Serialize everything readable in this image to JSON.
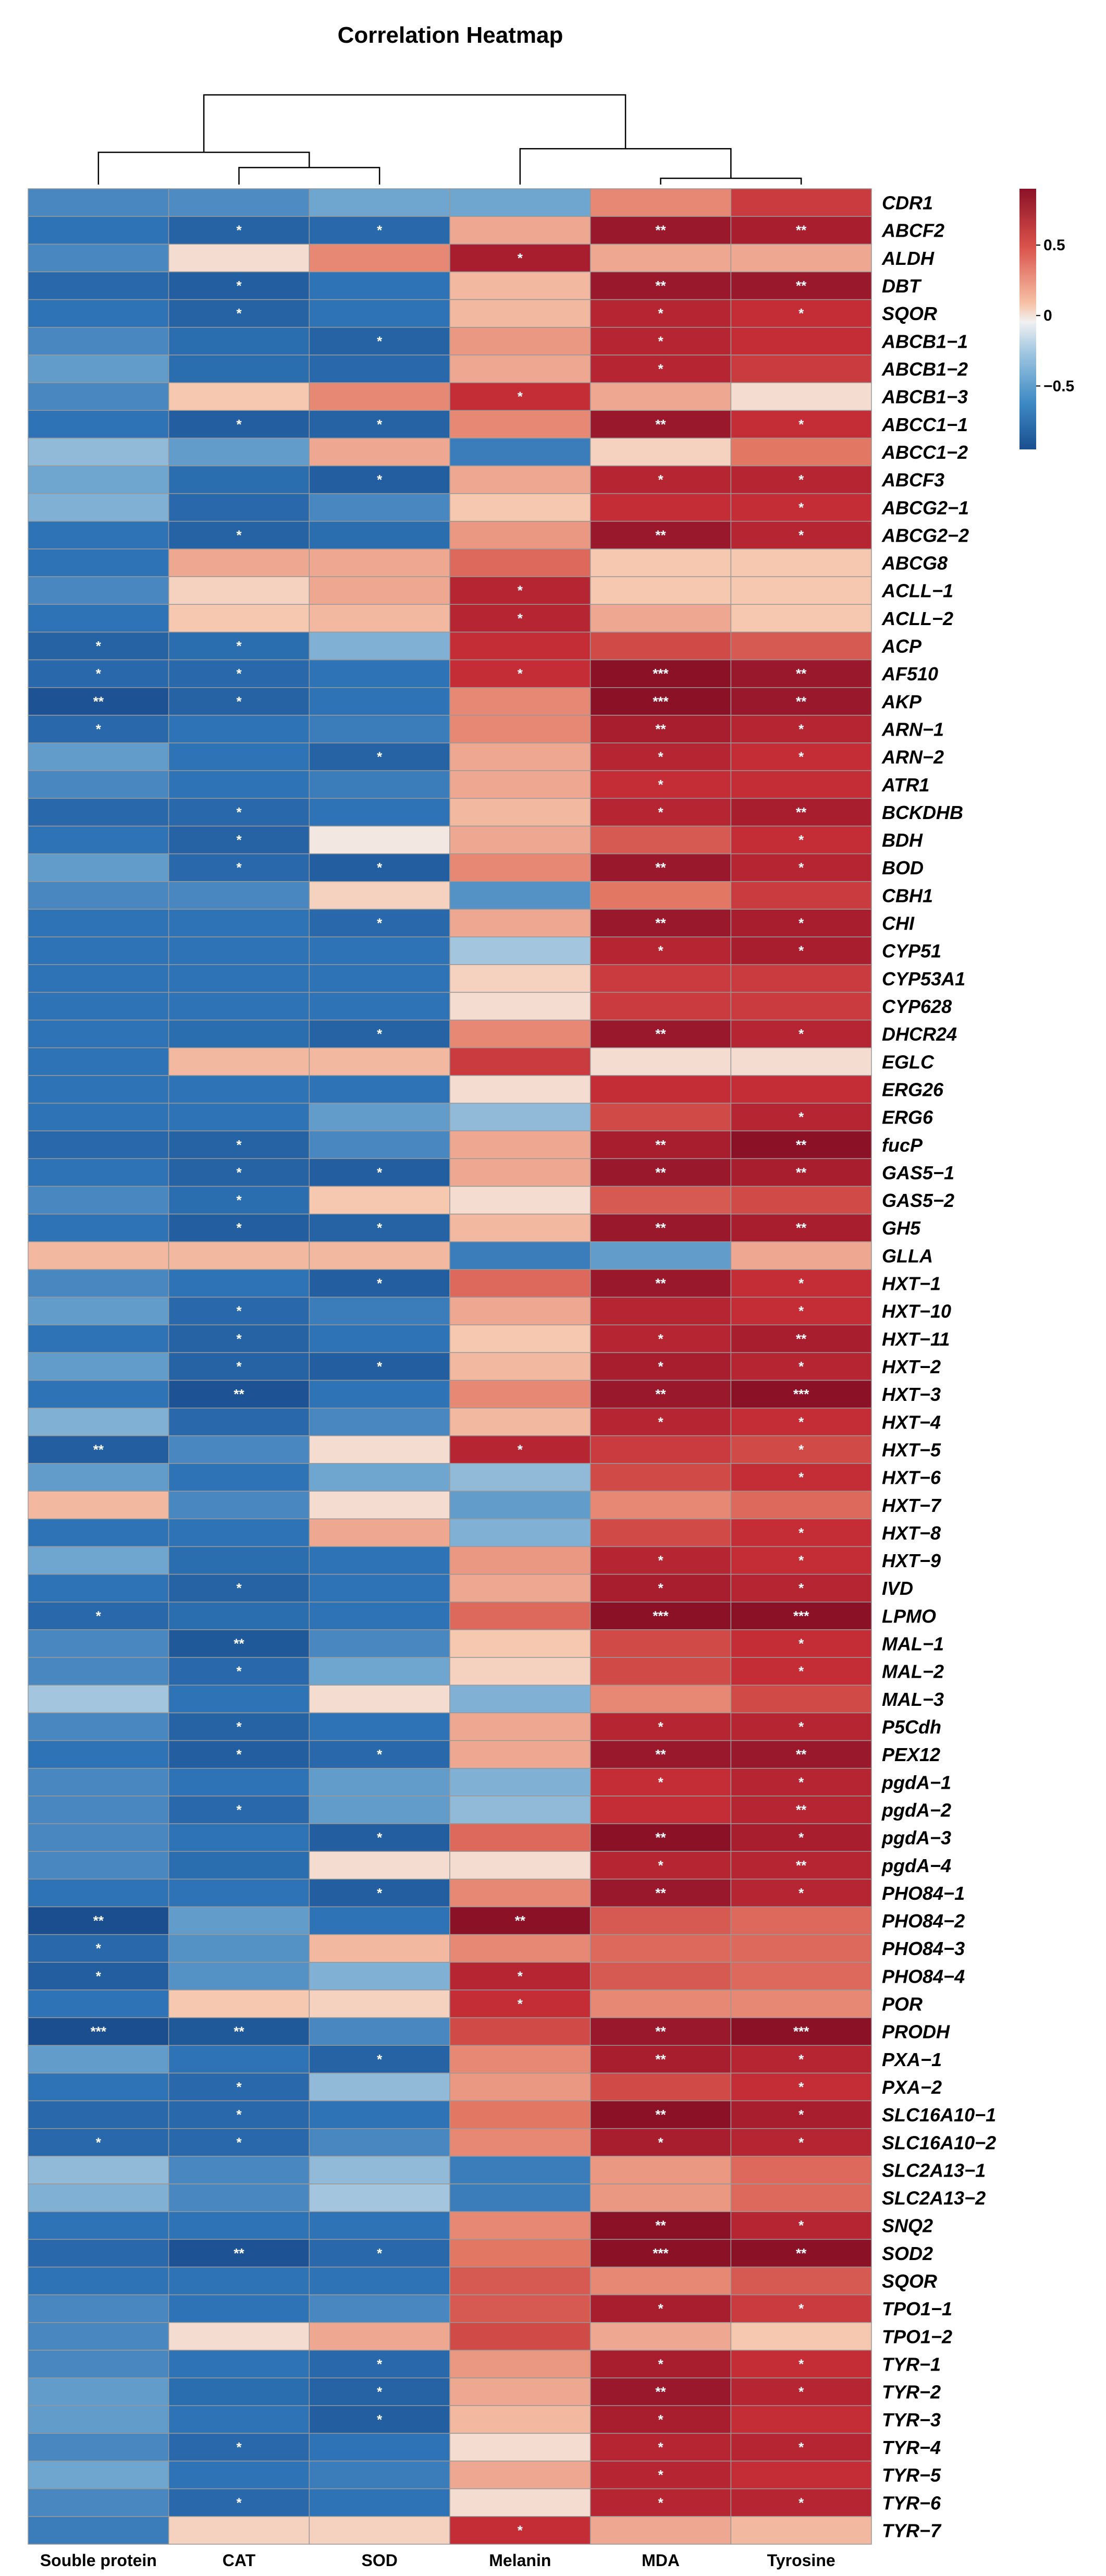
{
  "chart_data": {
    "type": "heatmap",
    "title": "Correlation Heatmap",
    "columns": [
      "Souble protein",
      "CAT",
      "SOD",
      "Melanin",
      "MDA",
      "Tyrosine"
    ],
    "rows": [
      "CDR1",
      "ABCF2",
      "ALDH",
      "DBT",
      "SQOR",
      "ABCB1−1",
      "ABCB1−2",
      "ABCB1−3",
      "ABCC1−1",
      "ABCC1−2",
      "ABCF3",
      "ABCG2−1",
      "ABCG2−2",
      "ABCG8",
      "ACLL−1",
      "ACLL−2",
      "ACP",
      "AF510",
      "AKP",
      "ARN−1",
      "ARN−2",
      "ATR1",
      "BCKDHB",
      "BDH",
      "BOD",
      "CBH1",
      "CHI",
      "CYP51",
      "CYP53A1",
      "CYP628",
      "DHCR24",
      "EGLC",
      "ERG26",
      "ERG6",
      "fucP",
      "GAS5−1",
      "GAS5−2",
      "GH5",
      "GLLA",
      "HXT−1",
      "HXT−10",
      "HXT−11",
      "HXT−2",
      "HXT−3",
      "HXT−4",
      "HXT−5",
      "HXT−6",
      "HXT−7",
      "HXT−8",
      "HXT−9",
      "IVD",
      "LPMO",
      "MAL−1",
      "MAL−2",
      "MAL−3",
      "P5Cdh",
      "PEX12",
      "pgdA−1",
      "pgdA−2",
      "pgdA−3",
      "pgdA−4",
      "PHO84−1",
      "PHO84−2",
      "PHO84−3",
      "PHO84−4",
      "POR",
      "PRODH",
      "PXA−1",
      "PXA−2",
      "SLC16A10−1",
      "SLC16A10−2",
      "SLC2A13−1",
      "SLC2A13−2",
      "SNQ2",
      "SOD2",
      "SQOR",
      "TPO1−1",
      "TPO1−2",
      "TYR−1",
      "TYR−2",
      "TYR−3",
      "TYR−4",
      "TYR−5",
      "TYR−6",
      "TYR−7"
    ],
    "values": [
      [
        -0.5,
        -0.48,
        -0.35,
        -0.35,
        0.4,
        0.65
      ],
      [
        -0.6,
        -0.75,
        -0.7,
        0.3,
        0.85,
        0.8
      ],
      [
        -0.5,
        0.1,
        0.4,
        0.8,
        0.3,
        0.3
      ],
      [
        -0.7,
        -0.8,
        -0.6,
        0.25,
        0.85,
        0.85
      ],
      [
        -0.6,
        -0.75,
        -0.6,
        0.25,
        0.75,
        0.7
      ],
      [
        -0.5,
        -0.65,
        -0.75,
        0.35,
        0.75,
        0.7
      ],
      [
        -0.4,
        -0.65,
        -0.7,
        0.3,
        0.75,
        0.65
      ],
      [
        -0.5,
        0.2,
        0.4,
        0.7,
        0.3,
        0.1
      ],
      [
        -0.6,
        -0.8,
        -0.75,
        0.4,
        0.85,
        0.7
      ],
      [
        -0.25,
        -0.4,
        0.3,
        -0.55,
        0.15,
        0.45
      ],
      [
        -0.35,
        -0.65,
        -0.8,
        0.3,
        0.75,
        0.75
      ],
      [
        -0.3,
        -0.7,
        -0.5,
        0.2,
        0.7,
        0.7
      ],
      [
        -0.6,
        -0.75,
        -0.65,
        0.35,
        0.85,
        0.75
      ],
      [
        -0.6,
        0.3,
        0.3,
        0.5,
        0.2,
        0.2
      ],
      [
        -0.5,
        0.15,
        0.3,
        0.75,
        0.2,
        0.2
      ],
      [
        -0.6,
        0.2,
        0.25,
        0.75,
        0.3,
        0.2
      ],
      [
        -0.75,
        -0.65,
        -0.3,
        0.7,
        0.6,
        0.55
      ],
      [
        -0.7,
        -0.7,
        -0.6,
        0.7,
        0.95,
        0.85
      ],
      [
        -0.9,
        -0.75,
        -0.6,
        0.4,
        0.95,
        0.85
      ],
      [
        -0.7,
        -0.6,
        -0.55,
        0.4,
        0.8,
        0.75
      ],
      [
        -0.4,
        -0.6,
        -0.75,
        0.3,
        0.75,
        0.7
      ],
      [
        -0.5,
        -0.6,
        -0.55,
        0.3,
        0.7,
        0.7
      ],
      [
        -0.7,
        -0.7,
        -0.6,
        0.25,
        0.75,
        0.8
      ],
      [
        -0.6,
        -0.75,
        0.05,
        0.3,
        0.55,
        0.7
      ],
      [
        -0.4,
        -0.7,
        -0.8,
        0.4,
        0.85,
        0.75
      ],
      [
        -0.5,
        -0.5,
        0.15,
        -0.45,
        0.45,
        0.65
      ],
      [
        -0.6,
        -0.6,
        -0.7,
        0.3,
        0.85,
        0.8
      ],
      [
        -0.6,
        -0.6,
        -0.6,
        -0.2,
        0.75,
        0.8
      ],
      [
        -0.6,
        -0.6,
        -0.6,
        0.15,
        0.65,
        0.65
      ],
      [
        -0.6,
        -0.6,
        -0.6,
        0.1,
        0.65,
        0.65
      ],
      [
        -0.6,
        -0.65,
        -0.75,
        0.4,
        0.85,
        0.75
      ],
      [
        -0.6,
        0.25,
        0.25,
        0.65,
        0.1,
        0.1
      ],
      [
        -0.6,
        -0.6,
        -0.6,
        0.1,
        0.7,
        0.7
      ],
      [
        -0.6,
        -0.6,
        -0.4,
        -0.25,
        0.6,
        0.75
      ],
      [
        -0.7,
        -0.75,
        -0.5,
        0.3,
        0.8,
        0.9
      ],
      [
        -0.6,
        -0.75,
        -0.8,
        0.3,
        0.85,
        0.8
      ],
      [
        -0.5,
        -0.65,
        0.2,
        0.1,
        0.55,
        0.6
      ],
      [
        -0.6,
        -0.8,
        -0.75,
        0.25,
        0.85,
        0.8
      ],
      [
        0.25,
        0.25,
        0.25,
        -0.55,
        -0.4,
        0.3
      ],
      [
        -0.5,
        -0.6,
        -0.8,
        0.5,
        0.85,
        0.7
      ],
      [
        -0.4,
        -0.7,
        -0.55,
        0.3,
        0.75,
        0.7
      ],
      [
        -0.6,
        -0.75,
        -0.6,
        0.2,
        0.75,
        0.8
      ],
      [
        -0.4,
        -0.75,
        -0.8,
        0.25,
        0.8,
        0.75
      ],
      [
        -0.6,
        -0.9,
        -0.6,
        0.4,
        0.85,
        0.9
      ],
      [
        -0.3,
        -0.7,
        -0.5,
        0.25,
        0.75,
        0.7
      ],
      [
        -0.8,
        -0.5,
        0.1,
        0.75,
        0.65,
        0.6
      ],
      [
        -0.4,
        -0.6,
        -0.35,
        -0.25,
        0.6,
        0.7
      ],
      [
        0.25,
        -0.5,
        0.1,
        -0.4,
        0.4,
        0.5
      ],
      [
        -0.6,
        -0.6,
        0.3,
        -0.3,
        0.6,
        0.7
      ],
      [
        -0.35,
        -0.65,
        -0.6,
        0.35,
        0.75,
        0.7
      ],
      [
        -0.6,
        -0.75,
        -0.6,
        0.3,
        0.8,
        0.75
      ],
      [
        -0.7,
        -0.65,
        -0.6,
        0.5,
        0.95,
        0.95
      ],
      [
        -0.5,
        -0.85,
        -0.5,
        0.2,
        0.6,
        0.7
      ],
      [
        -0.5,
        -0.7,
        -0.35,
        0.15,
        0.6,
        0.7
      ],
      [
        -0.2,
        -0.6,
        0.1,
        -0.3,
        0.4,
        0.6
      ],
      [
        -0.5,
        -0.75,
        -0.6,
        0.3,
        0.75,
        0.75
      ],
      [
        -0.6,
        -0.8,
        -0.7,
        0.3,
        0.85,
        0.85
      ],
      [
        -0.5,
        -0.6,
        -0.4,
        -0.3,
        0.7,
        0.75
      ],
      [
        -0.5,
        -0.7,
        -0.4,
        -0.25,
        0.7,
        0.75
      ],
      [
        -0.5,
        -0.6,
        -0.8,
        0.5,
        0.9,
        0.8
      ],
      [
        -0.5,
        -0.65,
        0.1,
        0.1,
        0.75,
        0.75
      ],
      [
        -0.6,
        -0.6,
        -0.8,
        0.4,
        0.85,
        0.75
      ],
      [
        -0.95,
        -0.4,
        -0.6,
        0.9,
        0.55,
        0.5
      ],
      [
        -0.7,
        -0.45,
        0.25,
        0.4,
        0.5,
        0.5
      ],
      [
        -0.8,
        -0.45,
        -0.3,
        0.75,
        0.55,
        0.5
      ],
      [
        -0.6,
        0.2,
        0.15,
        0.7,
        0.4,
        0.4
      ],
      [
        -0.98,
        -0.85,
        -0.5,
        0.6,
        0.85,
        0.95
      ],
      [
        -0.4,
        -0.6,
        -0.75,
        0.4,
        0.8,
        0.75
      ],
      [
        -0.6,
        -0.7,
        -0.25,
        0.35,
        0.6,
        0.7
      ],
      [
        -0.7,
        -0.7,
        -0.6,
        0.45,
        0.9,
        0.8
      ],
      [
        -0.7,
        -0.7,
        -0.5,
        0.4,
        0.8,
        0.75
      ],
      [
        -0.25,
        -0.5,
        -0.25,
        -0.55,
        0.35,
        0.5
      ],
      [
        -0.3,
        -0.5,
        -0.2,
        -0.55,
        0.35,
        0.5
      ],
      [
        -0.6,
        -0.6,
        -0.6,
        0.4,
        0.9,
        0.75
      ],
      [
        -0.7,
        -0.9,
        -0.7,
        0.45,
        0.95,
        0.9
      ],
      [
        -0.6,
        -0.6,
        -0.6,
        0.55,
        0.4,
        0.55
      ],
      [
        -0.5,
        -0.6,
        -0.5,
        0.55,
        0.8,
        0.65
      ],
      [
        -0.5,
        0.1,
        0.3,
        0.6,
        0.3,
        0.2
      ],
      [
        -0.5,
        -0.6,
        -0.7,
        0.35,
        0.8,
        0.7
      ],
      [
        -0.4,
        -0.65,
        -0.75,
        0.3,
        0.85,
        0.75
      ],
      [
        -0.4,
        -0.6,
        -0.8,
        0.25,
        0.8,
        0.7
      ],
      [
        -0.5,
        -0.7,
        -0.6,
        0.1,
        0.75,
        0.75
      ],
      [
        -0.35,
        -0.6,
        -0.55,
        0.3,
        0.75,
        0.7
      ],
      [
        -0.5,
        -0.7,
        -0.6,
        0.1,
        0.75,
        0.75
      ],
      [
        -0.55,
        0.15,
        0.15,
        0.7,
        0.3,
        0.25
      ]
    ],
    "significance": [
      [
        "",
        "",
        "",
        "",
        "",
        ""
      ],
      [
        "",
        "*",
        "*",
        "",
        "**",
        "**"
      ],
      [
        "",
        "",
        "",
        "*",
        "",
        ""
      ],
      [
        "",
        "*",
        "",
        "",
        "**",
        "**"
      ],
      [
        "",
        "*",
        "",
        "",
        "*",
        "*"
      ],
      [
        "",
        "",
        "*",
        "",
        "*",
        ""
      ],
      [
        "",
        "",
        "",
        "",
        "*",
        ""
      ],
      [
        "",
        "",
        "",
        "*",
        "",
        ""
      ],
      [
        "",
        "*",
        "*",
        "",
        "**",
        "*"
      ],
      [
        "",
        "",
        "",
        "",
        "",
        ""
      ],
      [
        "",
        "",
        "*",
        "",
        "*",
        "*"
      ],
      [
        "",
        "",
        "",
        "",
        "",
        "*"
      ],
      [
        "",
        "*",
        "",
        "",
        "**",
        "*"
      ],
      [
        "",
        "",
        "",
        "",
        "",
        ""
      ],
      [
        "",
        "",
        "",
        "*",
        "",
        ""
      ],
      [
        "",
        "",
        "",
        "*",
        "",
        ""
      ],
      [
        "*",
        "*",
        "",
        "",
        "",
        ""
      ],
      [
        "*",
        "*",
        "",
        "*",
        "***",
        "**"
      ],
      [
        "**",
        "*",
        "",
        "",
        "***",
        "**"
      ],
      [
        "*",
        "",
        "",
        "",
        "**",
        "*"
      ],
      [
        "",
        "",
        "*",
        "",
        "*",
        "*"
      ],
      [
        "",
        "",
        "",
        "",
        "*",
        ""
      ],
      [
        "",
        "*",
        "",
        "",
        "*",
        "**"
      ],
      [
        "",
        "*",
        "",
        "",
        "",
        "*"
      ],
      [
        "",
        "*",
        "*",
        "",
        "**",
        "*"
      ],
      [
        "",
        "",
        "",
        "",
        "",
        ""
      ],
      [
        "",
        "",
        "*",
        "",
        "**",
        "*"
      ],
      [
        "",
        "",
        "",
        "",
        "*",
        "*"
      ],
      [
        "",
        "",
        "",
        "",
        "",
        ""
      ],
      [
        "",
        "",
        "",
        "",
        "",
        ""
      ],
      [
        "",
        "",
        "*",
        "",
        "**",
        "*"
      ],
      [
        "",
        "",
        "",
        "",
        "",
        ""
      ],
      [
        "",
        "",
        "",
        "",
        "",
        ""
      ],
      [
        "",
        "",
        "",
        "",
        "",
        "*"
      ],
      [
        "",
        "*",
        "",
        "",
        "**",
        "**"
      ],
      [
        "",
        "*",
        "*",
        "",
        "**",
        "**"
      ],
      [
        "",
        "*",
        "",
        "",
        "",
        ""
      ],
      [
        "",
        "*",
        "*",
        "",
        "**",
        "**"
      ],
      [
        "",
        "",
        "",
        "",
        "",
        ""
      ],
      [
        "",
        "",
        "*",
        "",
        "**",
        "*"
      ],
      [
        "",
        "*",
        "",
        "",
        "",
        "*"
      ],
      [
        "",
        "*",
        "",
        "",
        "*",
        "**"
      ],
      [
        "",
        "*",
        "*",
        "",
        "*",
        "*"
      ],
      [
        "",
        "**",
        "",
        "",
        "**",
        "***"
      ],
      [
        "",
        "",
        "",
        "",
        "*",
        "*"
      ],
      [
        "**",
        "",
        "",
        "*",
        "",
        "*"
      ],
      [
        "",
        "",
        "",
        "",
        "",
        "*"
      ],
      [
        "",
        "",
        "",
        "",
        "",
        ""
      ],
      [
        "",
        "",
        "",
        "",
        "",
        "*"
      ],
      [
        "",
        "",
        "",
        "",
        "*",
        "*"
      ],
      [
        "",
        "*",
        "",
        "",
        "*",
        "*"
      ],
      [
        "*",
        "",
        "",
        "",
        "***",
        "***"
      ],
      [
        "",
        "**",
        "",
        "",
        "",
        "*"
      ],
      [
        "",
        "*",
        "",
        "",
        "",
        "*"
      ],
      [
        "",
        "",
        "",
        "",
        "",
        ""
      ],
      [
        "",
        "*",
        "",
        "",
        "*",
        "*"
      ],
      [
        "",
        "*",
        "*",
        "",
        "**",
        "**"
      ],
      [
        "",
        "",
        "",
        "",
        "*",
        "*"
      ],
      [
        "",
        "*",
        "",
        "",
        "",
        "**"
      ],
      [
        "",
        "",
        "*",
        "",
        "**",
        "*"
      ],
      [
        "",
        "",
        "",
        "",
        "*",
        "**"
      ],
      [
        "",
        "",
        "*",
        "",
        "**",
        "*"
      ],
      [
        "**",
        "",
        "",
        "**",
        "",
        ""
      ],
      [
        "*",
        "",
        "",
        "",
        "",
        ""
      ],
      [
        "*",
        "",
        "",
        "*",
        "",
        ""
      ],
      [
        "",
        "",
        "",
        "*",
        "",
        ""
      ],
      [
        "***",
        "**",
        "",
        "",
        "**",
        "***"
      ],
      [
        "",
        "",
        "*",
        "",
        "**",
        "*"
      ],
      [
        "",
        "*",
        "",
        "",
        "",
        "*"
      ],
      [
        "",
        "*",
        "",
        "",
        "**",
        "*"
      ],
      [
        "*",
        "*",
        "",
        "",
        "*",
        "*"
      ],
      [
        "",
        "",
        "",
        "",
        "",
        ""
      ],
      [
        "",
        "",
        "",
        "",
        "",
        ""
      ],
      [
        "",
        "",
        "",
        "",
        "**",
        "*"
      ],
      [
        "",
        "**",
        "*",
        "",
        "***",
        "**"
      ],
      [
        "",
        "",
        "",
        "",
        "",
        ""
      ],
      [
        "",
        "",
        "",
        "",
        "*",
        "*"
      ],
      [
        "",
        "",
        "",
        "",
        "",
        ""
      ],
      [
        "",
        "",
        "*",
        "",
        "*",
        "*"
      ],
      [
        "",
        "",
        "*",
        "",
        "**",
        "*"
      ],
      [
        "",
        "",
        "*",
        "",
        "*",
        ""
      ],
      [
        "",
        "*",
        "",
        "",
        "*",
        "*"
      ],
      [
        "",
        "",
        "",
        "",
        "*",
        ""
      ],
      [
        "",
        "*",
        "",
        "",
        "*",
        "*"
      ],
      [
        "",
        "",
        "",
        "*",
        "",
        ""
      ]
    ],
    "colorbar": {
      "range": [
        -0.95,
        0.9
      ],
      "ticks": [
        0.5,
        0,
        -0.5
      ],
      "tick_labels": [
        "0.5",
        "0",
        "−0.5"
      ],
      "low_color": "#1a4e8f",
      "mid_color": "#f1f1f1",
      "high_color": "#8b1127"
    },
    "dendrogram": {
      "leaf_order": [
        "Souble protein",
        "CAT",
        "SOD",
        "Melanin",
        "MDA",
        "Tyrosine"
      ],
      "merges": [
        [
          1,
          2,
          0.19
        ],
        [
          0,
          6,
          0.36
        ],
        [
          4,
          5,
          0.07
        ],
        [
          3,
          8,
          0.4
        ],
        [
          7,
          9,
          1.0
        ]
      ]
    },
    "colors": {
      "grid": "#999999",
      "text": "#000000",
      "dendrogram": "#000000"
    }
  }
}
